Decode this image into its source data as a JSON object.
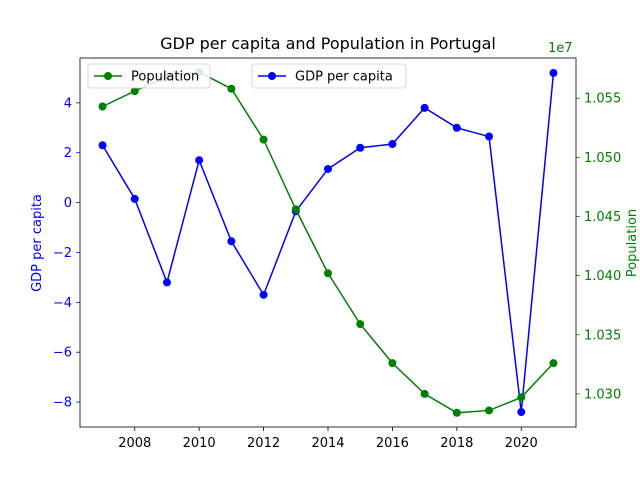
{
  "chart_data": {
    "type": "line",
    "title": "GDP per capita and Population in Portugal",
    "x": [
      2007,
      2008,
      2009,
      2010,
      2011,
      2012,
      2013,
      2014,
      2015,
      2016,
      2017,
      2018,
      2019,
      2020,
      2021
    ],
    "xlim": [
      2006.3,
      2021.7
    ],
    "xticks": [
      "2008",
      "2010",
      "2012",
      "2014",
      "2016",
      "2018",
      "2020"
    ],
    "series": [
      {
        "name": "GDP per capita",
        "axis": "left",
        "color": "#0000ff",
        "values": [
          2.3,
          0.15,
          -3.2,
          1.7,
          -1.55,
          -3.7,
          -0.35,
          1.35,
          2.2,
          2.35,
          3.8,
          3.0,
          2.65,
          -8.4,
          5.2
        ]
      },
      {
        "name": "Population",
        "axis": "right",
        "color": "#008000",
        "values": [
          10543000,
          10556000,
          10568000,
          10572000,
          10558000,
          10515000,
          10456000,
          10402000,
          10359000,
          10326000,
          10300000,
          10284000,
          10286000,
          10297000,
          10326000
        ]
      }
    ],
    "y_left": {
      "label": "GDP per capita",
      "color": "#0000ff",
      "ylim": [
        -9.0,
        5.8
      ],
      "ticks": [
        -8,
        -6,
        -4,
        -2,
        0,
        2,
        4
      ],
      "tick_labels": [
        "−8",
        "−6",
        "−4",
        "−2",
        "0",
        "2",
        "4"
      ]
    },
    "y_right": {
      "label": "Population",
      "color": "#008000",
      "ylim": [
        10272000,
        10584000
      ],
      "ticks": [
        10300000,
        10350000,
        10400000,
        10450000,
        10500000,
        10550000
      ],
      "tick_labels": [
        "1.030",
        "1.035",
        "1.040",
        "1.045",
        "1.050",
        "1.055"
      ],
      "offset_text": "1e7"
    },
    "legends": [
      {
        "label": "Population",
        "color": "#008000",
        "placement": "upper-left"
      },
      {
        "label": "GDP per capita",
        "color": "#0000ff",
        "placement": "upper-center"
      }
    ],
    "grid": false
  }
}
